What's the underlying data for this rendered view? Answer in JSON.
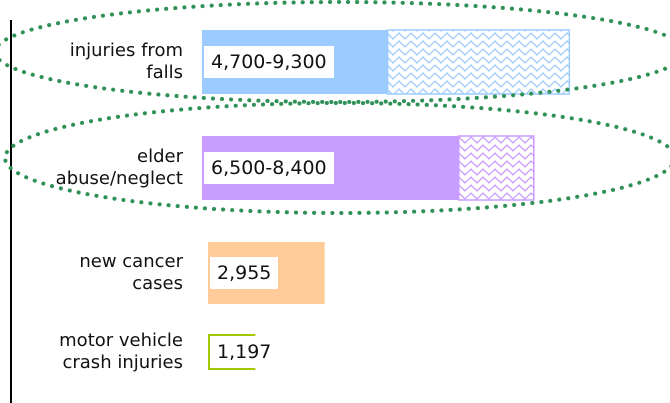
{
  "chart_data": {
    "type": "range-bar",
    "categories": [
      "injuries from\nfalls",
      "elder\nabuse/neglect",
      "new cancer\ncases",
      "motor vehicle\ncrash injuries"
    ],
    "values": [
      4700,
      6500,
      2955,
      1197
    ],
    "high": [
      9300,
      8400,
      null,
      null
    ],
    "value_labels": [
      "4,700-9,300",
      "6,500-8,400",
      "2,955",
      "1,197"
    ],
    "colors": [
      "#9ccbff",
      "#c99cff",
      "#ffcc99",
      "#a3c900"
    ]
  }
}
